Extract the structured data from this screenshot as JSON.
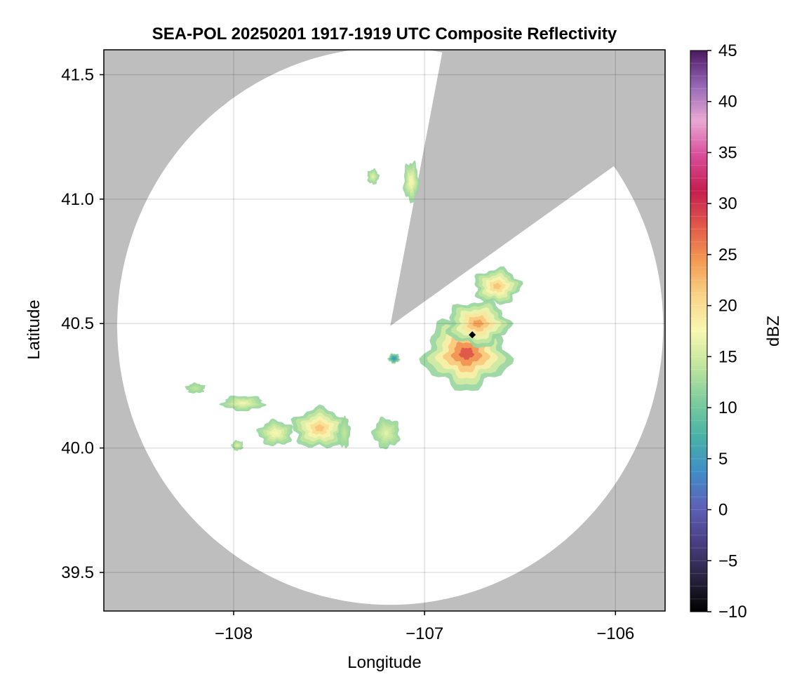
{
  "chart_data": {
    "type": "heatmap",
    "title": "SEA-POL 20250201 1917-1919 UTC Composite Reflectivity",
    "xlabel": "Longitude",
    "ylabel": "Latitude",
    "xlim": [
      -108.68,
      -105.74
    ],
    "ylim": [
      39.345,
      41.6
    ],
    "xticks": [
      -108,
      -107,
      -106
    ],
    "xtick_labels": [
      "−108",
      "−107",
      "−106"
    ],
    "yticks": [
      39.5,
      40.0,
      40.5,
      41.0,
      41.5
    ],
    "ytick_labels": [
      "39.5",
      "40.0",
      "40.5",
      "41.0",
      "41.5"
    ],
    "grid": true,
    "background_color": "#bebebe",
    "coverage_color": "#ffffff",
    "radar": {
      "center": [
        -107.18,
        40.49
      ],
      "range_deg_lon": 1.43,
      "range_deg_lat": 1.12,
      "blocked_sector_azimuth_deg": [
        11,
        55
      ],
      "site_marker": [
        -106.75,
        40.455
      ]
    },
    "colorbar": {
      "label": "dBZ",
      "range": [
        -10,
        45
      ],
      "ticks": [
        -10,
        -5,
        0,
        5,
        10,
        15,
        20,
        25,
        30,
        35,
        40,
        45
      ],
      "tick_labels": [
        "−10",
        "−5",
        "0",
        "5",
        "10",
        "15",
        "20",
        "25",
        "30",
        "35",
        "40",
        "45"
      ],
      "colors": [
        "#000000",
        "#2a2440",
        "#4a3f86",
        "#5e62b6",
        "#3f8ec6",
        "#48b2a6",
        "#7dcc9e",
        "#c1e59d",
        "#f8f8b2",
        "#f9d488",
        "#f39a52",
        "#e0584a",
        "#c41e50",
        "#d84d98",
        "#e8a8d2",
        "#9467b6",
        "#4a1a5e"
      ]
    },
    "echoes": [
      {
        "lon": -106.78,
        "lat": 40.38,
        "rx": 0.22,
        "ry": 0.14,
        "max_dbz": 28
      },
      {
        "lon": -106.72,
        "lat": 40.5,
        "rx": 0.16,
        "ry": 0.09,
        "max_dbz": 24
      },
      {
        "lon": -106.62,
        "lat": 40.65,
        "rx": 0.12,
        "ry": 0.07,
        "max_dbz": 22
      },
      {
        "lon": -107.55,
        "lat": 40.08,
        "rx": 0.14,
        "ry": 0.08,
        "max_dbz": 22
      },
      {
        "lon": -107.78,
        "lat": 40.06,
        "rx": 0.09,
        "ry": 0.05,
        "max_dbz": 18
      },
      {
        "lon": -107.2,
        "lat": 40.06,
        "rx": 0.07,
        "ry": 0.06,
        "max_dbz": 16
      },
      {
        "lon": -107.95,
        "lat": 40.18,
        "rx": 0.11,
        "ry": 0.03,
        "max_dbz": 17
      },
      {
        "lon": -107.07,
        "lat": 41.07,
        "rx": 0.04,
        "ry": 0.08,
        "max_dbz": 18
      },
      {
        "lon": -107.27,
        "lat": 41.09,
        "rx": 0.03,
        "ry": 0.03,
        "max_dbz": 16
      },
      {
        "lon": -107.42,
        "lat": 40.06,
        "rx": 0.03,
        "ry": 0.06,
        "max_dbz": 14
      },
      {
        "lon": -108.2,
        "lat": 40.24,
        "rx": 0.05,
        "ry": 0.02,
        "max_dbz": 14
      },
      {
        "lon": -107.98,
        "lat": 40.01,
        "rx": 0.03,
        "ry": 0.02,
        "max_dbz": 16
      },
      {
        "lon": -107.16,
        "lat": 40.36,
        "rx": 0.03,
        "ry": 0.02,
        "max_dbz": 4
      }
    ]
  }
}
